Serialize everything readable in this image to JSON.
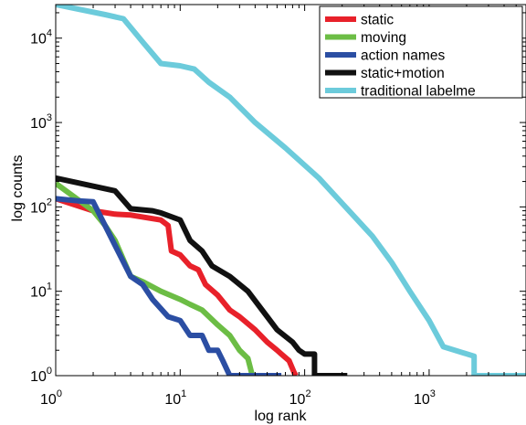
{
  "chart_data": {
    "type": "line",
    "title": "",
    "xlabel": "log rank",
    "ylabel": "log counts",
    "x_scale": "log",
    "y_scale": "log",
    "xlim": [
      1,
      6000
    ],
    "ylim": [
      1,
      25000
    ],
    "grid": false,
    "legend_position": "top-right",
    "x_ticks": [
      {
        "value": 1,
        "base": "10",
        "exp": "0"
      },
      {
        "value": 10,
        "base": "10",
        "exp": "1"
      },
      {
        "value": 100,
        "base": "10",
        "exp": "2"
      },
      {
        "value": 1000,
        "base": "10",
        "exp": "3"
      }
    ],
    "y_ticks": [
      {
        "value": 1,
        "base": "10",
        "exp": "0"
      },
      {
        "value": 10,
        "base": "10",
        "exp": "1"
      },
      {
        "value": 100,
        "base": "10",
        "exp": "2"
      },
      {
        "value": 1000,
        "base": "10",
        "exp": "3"
      },
      {
        "value": 10000,
        "base": "10",
        "exp": "4"
      }
    ],
    "series": [
      {
        "name": "traditional labelme",
        "color": "#6ccbdb",
        "points": [
          [
            1,
            25000
          ],
          [
            2.5,
            19000
          ],
          [
            3.5,
            17000
          ],
          [
            5,
            9000
          ],
          [
            7,
            5000
          ],
          [
            10,
            4700
          ],
          [
            13,
            4300
          ],
          [
            17,
            3000
          ],
          [
            25,
            2000
          ],
          [
            40,
            1000
          ],
          [
            70,
            500
          ],
          [
            130,
            220
          ],
          [
            200,
            110
          ],
          [
            350,
            45
          ],
          [
            500,
            22
          ],
          [
            700,
            10
          ],
          [
            1000,
            4.5
          ],
          [
            1300,
            2.2
          ],
          [
            2300,
            1.7
          ],
          [
            2300,
            1
          ],
          [
            6000,
            1
          ]
        ]
      },
      {
        "name": "static",
        "color": "#e8212a",
        "points": [
          [
            1,
            125
          ],
          [
            2,
            90
          ],
          [
            3,
            82
          ],
          [
            4,
            80
          ],
          [
            7,
            70
          ],
          [
            8,
            60
          ],
          [
            8.5,
            30
          ],
          [
            10,
            27
          ],
          [
            12,
            20
          ],
          [
            14,
            18
          ],
          [
            16,
            12
          ],
          [
            20,
            9
          ],
          [
            25,
            6
          ],
          [
            30,
            5
          ],
          [
            40,
            3.5
          ],
          [
            50,
            2.5
          ],
          [
            60,
            2
          ],
          [
            65,
            1.8
          ],
          [
            75,
            1.5
          ],
          [
            82,
            1.1
          ],
          [
            85,
            1
          ]
        ]
      },
      {
        "name": "moving",
        "color": "#6cbd45",
        "points": [
          [
            1,
            190
          ],
          [
            2,
            90
          ],
          [
            2.5,
            60
          ],
          [
            3,
            40
          ],
          [
            4,
            15
          ],
          [
            5,
            13
          ],
          [
            7,
            10
          ],
          [
            10,
            8
          ],
          [
            12,
            7
          ],
          [
            15,
            6
          ],
          [
            20,
            4
          ],
          [
            25,
            3
          ],
          [
            30,
            2
          ],
          [
            35,
            1.6
          ],
          [
            38,
            1
          ]
        ]
      },
      {
        "name": "action names",
        "color": "#2b4ea3",
        "points": [
          [
            1,
            125
          ],
          [
            1.5,
            118
          ],
          [
            2,
            115
          ],
          [
            3,
            35
          ],
          [
            4,
            15
          ],
          [
            5,
            12
          ],
          [
            6,
            8
          ],
          [
            8,
            5
          ],
          [
            10,
            4.5
          ],
          [
            12,
            3
          ],
          [
            15,
            3
          ],
          [
            17,
            2
          ],
          [
            20,
            2
          ],
          [
            22,
            1.5
          ],
          [
            25,
            1
          ],
          [
            65,
            1
          ]
        ]
      },
      {
        "name": "static+motion",
        "color": "#111111",
        "points": [
          [
            1,
            220
          ],
          [
            3,
            155
          ],
          [
            4,
            95
          ],
          [
            6,
            90
          ],
          [
            7,
            85
          ],
          [
            10,
            70
          ],
          [
            12,
            40
          ],
          [
            15,
            30
          ],
          [
            18,
            20
          ],
          [
            25,
            15
          ],
          [
            35,
            10
          ],
          [
            50,
            5
          ],
          [
            60,
            3.5
          ],
          [
            80,
            2.5
          ],
          [
            90,
            2
          ],
          [
            100,
            1.8
          ],
          [
            120,
            1.8
          ],
          [
            120,
            1
          ],
          [
            220,
            1
          ]
        ]
      }
    ]
  }
}
